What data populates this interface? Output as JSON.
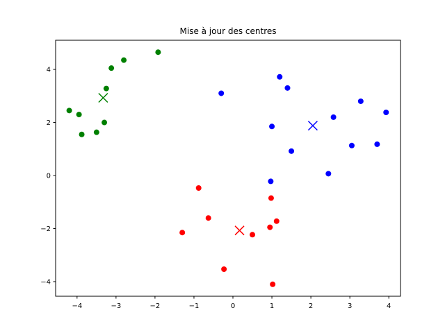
{
  "chart_data": {
    "type": "scatter",
    "title": "Mise à jour des centres",
    "xlabel": "",
    "ylabel": "",
    "xlim": [
      -4.55,
      4.3
    ],
    "ylim": [
      -4.55,
      5.1
    ],
    "xticks": [
      -4,
      -3,
      -2,
      -1,
      0,
      1,
      2,
      3,
      4
    ],
    "yticks": [
      -4,
      -2,
      0,
      2,
      4
    ],
    "grid": false,
    "series": [
      {
        "color": "#008000",
        "points": [
          [
            -4.2,
            2.45
          ],
          [
            -3.95,
            2.3
          ],
          [
            -3.88,
            1.55
          ],
          [
            -3.5,
            1.63
          ],
          [
            -3.3,
            2.0
          ],
          [
            -3.25,
            3.28
          ],
          [
            -3.12,
            4.05
          ],
          [
            -2.8,
            4.35
          ],
          [
            -1.92,
            4.65
          ]
        ],
        "center": [
          -3.33,
          2.93
        ]
      },
      {
        "color": "#0000ff",
        "points": [
          [
            -0.3,
            3.1
          ],
          [
            1.2,
            3.72
          ],
          [
            1.4,
            3.3
          ],
          [
            1.0,
            1.85
          ],
          [
            0.97,
            -0.22
          ],
          [
            1.5,
            0.92
          ],
          [
            2.45,
            0.07
          ],
          [
            2.58,
            2.2
          ],
          [
            3.05,
            1.13
          ],
          [
            3.28,
            2.8
          ],
          [
            3.7,
            1.18
          ],
          [
            3.93,
            2.38
          ]
        ],
        "center": [
          2.05,
          1.88
        ]
      },
      {
        "color": "#ff0000",
        "points": [
          [
            -0.88,
            -0.47
          ],
          [
            -0.63,
            -1.6
          ],
          [
            -1.3,
            -2.15
          ],
          [
            0.98,
            -0.85
          ],
          [
            0.95,
            -1.95
          ],
          [
            1.12,
            -1.72
          ],
          [
            0.5,
            -2.23
          ],
          [
            -0.23,
            -3.53
          ],
          [
            1.02,
            -4.1
          ]
        ],
        "center": [
          0.17,
          -2.07
        ]
      }
    ]
  }
}
